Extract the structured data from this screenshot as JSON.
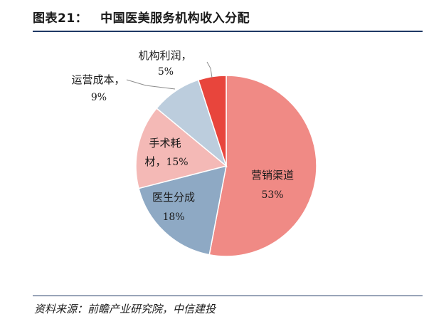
{
  "header": {
    "figure_number": "图表21：",
    "title": "中国医美服务机构收入分配"
  },
  "source": {
    "text": "资料来源：前瞻产业研究院，中信建投"
  },
  "chart_data": {
    "type": "pie",
    "title": "中国医美服务机构收入分配",
    "start_angle_deg": 0,
    "direction": "clockwise",
    "slices": [
      {
        "label": "营销渠道",
        "value": 53,
        "value_label": "53%",
        "color": "#f08a85"
      },
      {
        "label": "医生分成",
        "value": 18,
        "value_label": "18%",
        "color": "#8ea9c4"
      },
      {
        "label": "手术耗材",
        "value": 15,
        "value_label": "15%",
        "color": "#f4b9b6"
      },
      {
        "label": "运营成本",
        "value": 9,
        "value_label": "9%",
        "color": "#bccddd"
      },
      {
        "label": "机构利润",
        "value": 5,
        "value_label": "5%",
        "color": "#e8453c"
      }
    ],
    "legend": "none"
  }
}
